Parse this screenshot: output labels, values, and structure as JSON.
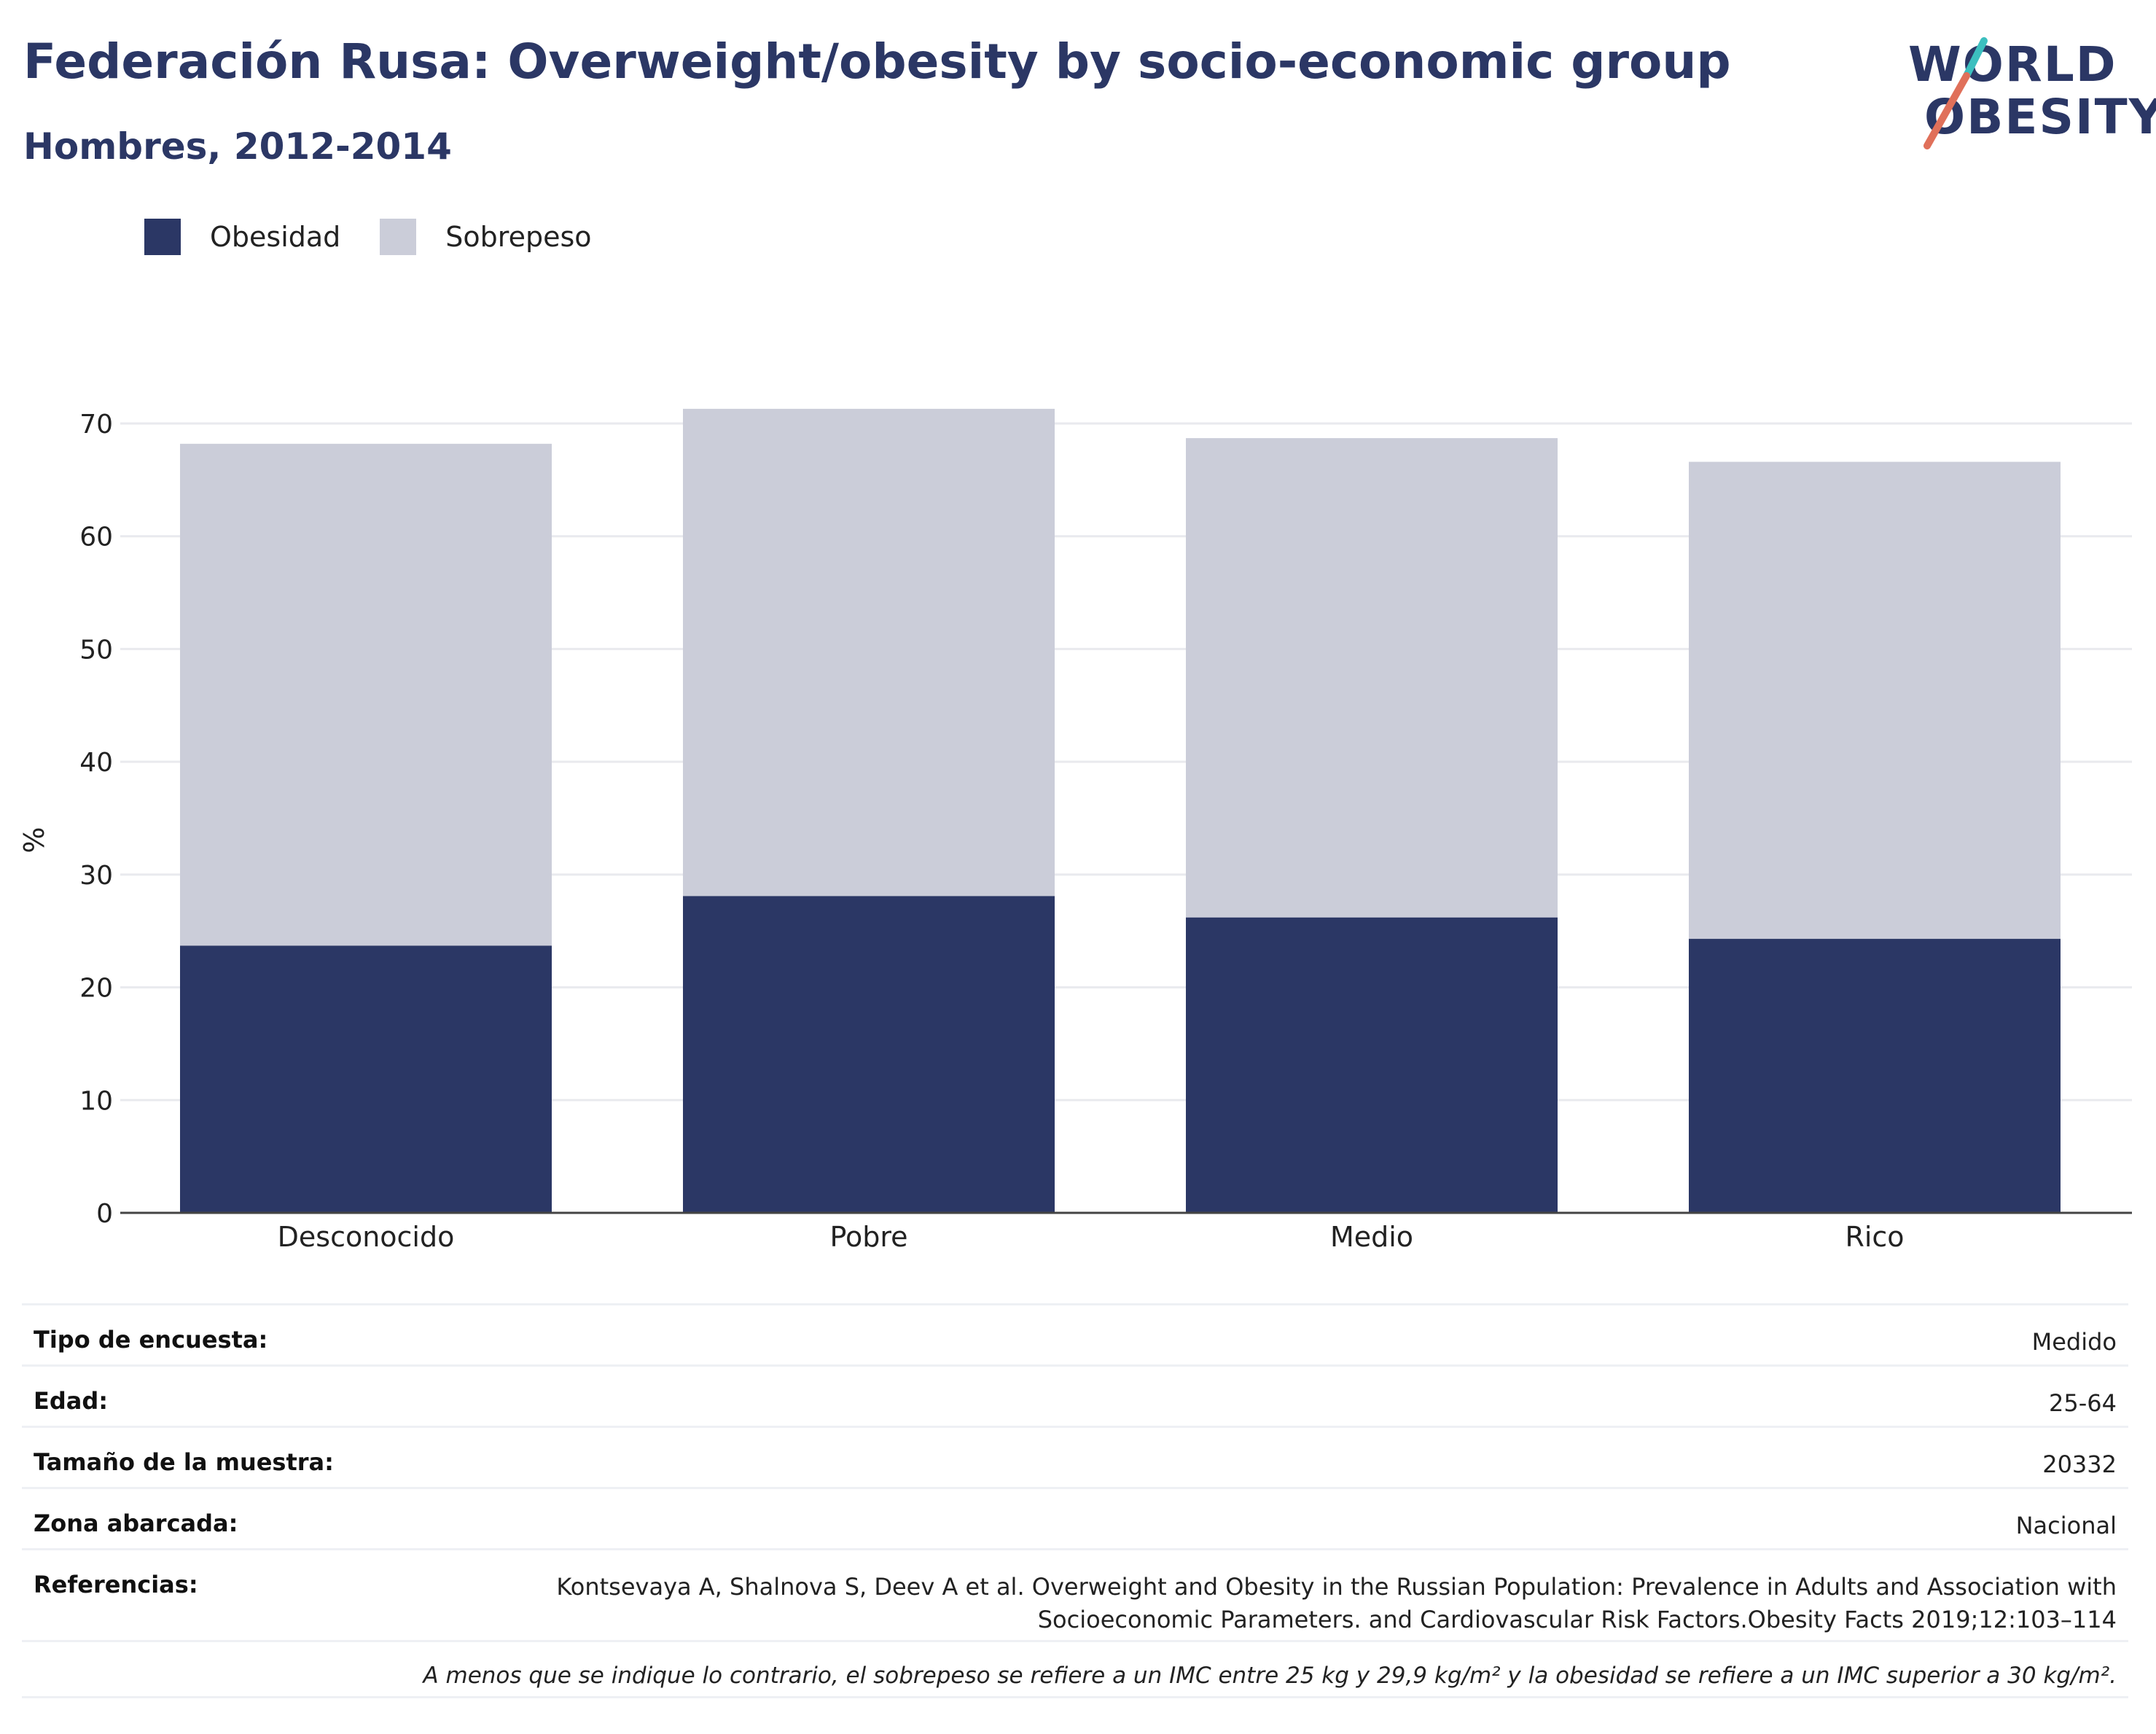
{
  "header": {
    "title": "Federación Rusa: Overweight/obesity by socio-economic group",
    "subtitle": "Hombres, 2012-2014"
  },
  "logo": {
    "line1": "WORLD",
    "line2": "OBESITY",
    "accent_colors": [
      "#3cbfbf",
      "#e0705a"
    ]
  },
  "legend": {
    "obesity_label": "Obesidad",
    "overweight_label": "Sobrepeso"
  },
  "colors": {
    "obesity": "#2b3765",
    "overweight": "#cbcdd9",
    "grid": "#e9eaee",
    "axis": "#444444"
  },
  "chart_data": {
    "type": "bar",
    "stacked": true,
    "categories": [
      "Desconocido",
      "Pobre",
      "Medio",
      "Rico"
    ],
    "series": [
      {
        "name": "Obesidad",
        "values": [
          23.7,
          28.1,
          26.2,
          24.3
        ]
      },
      {
        "name": "Sobrepeso",
        "values": [
          44.5,
          43.2,
          42.5,
          42.3
        ]
      }
    ],
    "ylabel": "%",
    "ylim": [
      0,
      70
    ],
    "yticks": [
      0,
      10,
      20,
      30,
      40,
      50,
      60,
      70
    ],
    "grid": true,
    "legend_position": "top-left"
  },
  "meta": [
    {
      "key": "Tipo de encuesta:",
      "value": "Medido"
    },
    {
      "key": "Edad:",
      "value": "25-64"
    },
    {
      "key": "Tamaño de la muestra:",
      "value": "20332"
    },
    {
      "key": "Zona abarcada:",
      "value": "Nacional"
    },
    {
      "key": "Referencias:",
      "value": "Kontsevaya A, Shalnova S, Deev A et al. Overweight and Obesity in the Russian Population: Prevalence in Adults and Association with Socioeconomic Parameters. and Cardiovascular Risk Factors.Obesity Facts 2019;12:103–114"
    }
  ],
  "footnote": "A menos que se indique lo contrario, el sobrepeso se refiere a un IMC entre 25 kg y 29,9 kg/m² y la obesidad se refiere a un IMC superior a 30 kg/m²."
}
